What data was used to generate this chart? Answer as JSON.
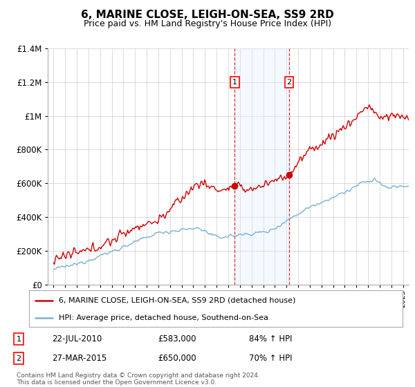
{
  "title": "6, MARINE CLOSE, LEIGH-ON-SEA, SS9 2RD",
  "subtitle": "Price paid vs. HM Land Registry's House Price Index (HPI)",
  "legend_line1": "6, MARINE CLOSE, LEIGH-ON-SEA, SS9 2RD (detached house)",
  "legend_line2": "HPI: Average price, detached house, Southend-on-Sea",
  "footer": "Contains HM Land Registry data © Crown copyright and database right 2024.\nThis data is licensed under the Open Government Licence v3.0.",
  "sale1_date": "22-JUL-2010",
  "sale1_price": 583000,
  "sale1_pct": "84% ↑ HPI",
  "sale2_date": "27-MAR-2015",
  "sale2_price": 650000,
  "sale2_pct": "70% ↑ HPI",
  "sale1_x": 2010.55,
  "sale2_x": 2015.23,
  "red_color": "#cc0000",
  "blue_color": "#7ab0d4",
  "shade_color": "#ddeeff",
  "background_color": "#ffffff",
  "ylim": [
    0,
    1400000
  ],
  "xlim": [
    1994.5,
    2025.5
  ]
}
